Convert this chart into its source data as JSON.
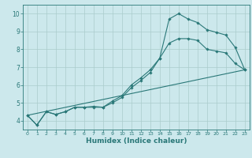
{
  "xlabel": "Humidex (Indice chaleur)",
  "ylabel": "",
  "background_color": "#cce8ec",
  "grid_color": "#aacccc",
  "line_color": "#2a7878",
  "xlim": [
    -0.5,
    23.5
  ],
  "ylim": [
    3.5,
    10.5
  ],
  "xticks": [
    0,
    1,
    2,
    3,
    4,
    5,
    6,
    7,
    8,
    9,
    10,
    11,
    12,
    13,
    14,
    15,
    16,
    17,
    18,
    19,
    20,
    21,
    22,
    23
  ],
  "yticks": [
    4,
    5,
    6,
    7,
    8,
    9,
    10
  ],
  "line1_x": [
    0,
    1,
    2,
    3,
    4,
    5,
    6,
    7,
    8,
    9,
    10,
    11,
    12,
    13,
    14,
    15,
    16,
    17,
    18,
    19,
    20,
    21,
    22,
    23
  ],
  "line1_y": [
    4.3,
    3.75,
    4.5,
    4.35,
    4.5,
    4.75,
    4.75,
    4.8,
    4.75,
    5.1,
    5.4,
    6.0,
    6.4,
    6.85,
    7.5,
    9.7,
    10.0,
    9.7,
    9.5,
    9.1,
    8.95,
    8.8,
    8.1,
    6.85
  ],
  "line2_x": [
    0,
    1,
    2,
    3,
    4,
    5,
    6,
    7,
    8,
    9,
    10,
    11,
    12,
    13,
    14,
    15,
    16,
    17,
    18,
    19,
    20,
    21,
    22,
    23
  ],
  "line2_y": [
    4.3,
    3.75,
    4.5,
    4.35,
    4.5,
    4.75,
    4.75,
    4.75,
    4.75,
    5.0,
    5.3,
    5.85,
    6.25,
    6.7,
    7.5,
    8.35,
    8.6,
    8.6,
    8.5,
    8.0,
    7.9,
    7.8,
    7.2,
    6.85
  ],
  "line3_x": [
    0,
    23
  ],
  "line3_y": [
    4.3,
    6.85
  ]
}
